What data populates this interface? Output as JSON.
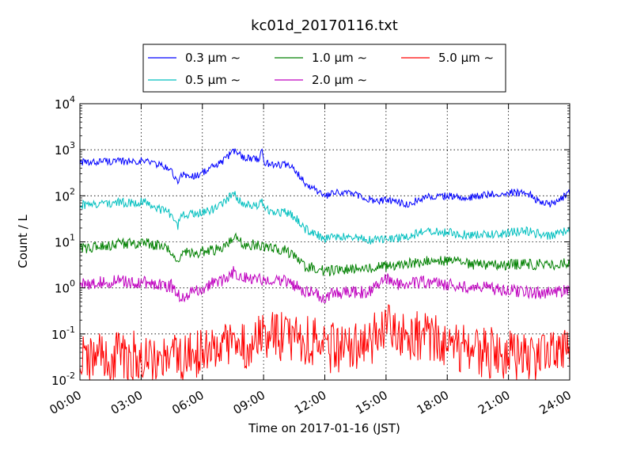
{
  "chart_data": {
    "type": "line",
    "title": "kc01d_20170116.txt",
    "xlabel": "Time on 2017-01-16 (JST)",
    "ylabel": "Count / L",
    "x_ticks": [
      "00:00",
      "03:00",
      "06:00",
      "09:00",
      "12:00",
      "15:00",
      "18:00",
      "21:00",
      "24:00"
    ],
    "x_range_hours": [
      0,
      24
    ],
    "y_scale": "log",
    "ylim": [
      0.01,
      10000
    ],
    "y_ticks": [
      {
        "base": "10",
        "exp": "-2"
      },
      {
        "base": "10",
        "exp": "-1"
      },
      {
        "base": "10",
        "exp": "0"
      },
      {
        "base": "10",
        "exp": "1"
      },
      {
        "base": "10",
        "exp": "2"
      },
      {
        "base": "10",
        "exp": "3"
      },
      {
        "base": "10",
        "exp": "4"
      }
    ],
    "grid": true,
    "legend_placement": "top-center",
    "series": [
      {
        "name": "0.3 μm ∼",
        "color": "#0000ff",
        "noise": 0.04,
        "x": [
          0,
          0.5,
          1,
          2,
          3,
          3.5,
          4,
          4.5,
          4.8,
          5,
          5.5,
          6,
          6.5,
          7,
          7.5,
          7.8,
          8,
          8.5,
          8.8,
          8.9,
          9,
          9.5,
          10,
          10.5,
          11,
          11.5,
          12,
          12.5,
          13,
          14,
          14.5,
          15,
          15.5,
          16,
          17,
          18,
          19,
          20,
          21,
          22,
          22.5,
          23,
          23.5,
          24
        ],
        "y": [
          550,
          500,
          580,
          550,
          580,
          540,
          450,
          350,
          180,
          300,
          260,
          320,
          420,
          550,
          950,
          820,
          700,
          650,
          620,
          1350,
          520,
          480,
          480,
          380,
          200,
          140,
          95,
          115,
          120,
          90,
          75,
          80,
          75,
          65,
          95,
          100,
          90,
          105,
          120,
          110,
          75,
          65,
          80,
          120
        ]
      },
      {
        "name": "0.5 μm ∼",
        "color": "#00bfbf",
        "noise": 0.05,
        "x": [
          0,
          0.5,
          1,
          2,
          3,
          3.5,
          4,
          4.5,
          4.8,
          5,
          5.5,
          6,
          6.5,
          7,
          7.5,
          7.8,
          8,
          8.5,
          8.8,
          8.9,
          9,
          9.5,
          10,
          10.5,
          11,
          11.5,
          12,
          12.5,
          13,
          14,
          15,
          16,
          17,
          18,
          19,
          20,
          21,
          22,
          23,
          24
        ],
        "y": [
          65,
          60,
          70,
          70,
          75,
          65,
          50,
          40,
          22,
          42,
          40,
          45,
          50,
          65,
          120,
          85,
          70,
          65,
          60,
          95,
          55,
          45,
          45,
          35,
          20,
          15,
          12,
          12,
          13,
          11,
          11,
          13,
          17,
          16,
          14,
          14,
          16,
          17,
          13,
          18
        ]
      },
      {
        "name": "1.0 μm ∼",
        "color": "#008000",
        "noise": 0.06,
        "x": [
          0,
          1,
          2,
          3,
          3.5,
          4,
          4.5,
          4.8,
          5,
          5.5,
          6,
          6.5,
          7,
          7.5,
          7.8,
          8,
          8.5,
          9,
          9.5,
          10,
          10.5,
          11,
          12,
          13,
          14,
          15,
          16,
          17,
          18,
          19,
          20,
          21,
          22,
          23,
          24
        ],
        "y": [
          7,
          8,
          9,
          9.5,
          9,
          8,
          6,
          3.5,
          6,
          5.5,
          6,
          6.5,
          7,
          13,
          10,
          9,
          8.5,
          8,
          7,
          7,
          5,
          3,
          2.3,
          2.5,
          2.6,
          3,
          3.3,
          3.8,
          4,
          3.3,
          3,
          3.2,
          3.3,
          3.2,
          3.5
        ]
      },
      {
        "name": "2.0 μm ∼",
        "color": "#bf00bf",
        "noise": 0.07,
        "x": [
          0,
          1,
          2,
          3,
          4,
          4.5,
          5,
          5.5,
          6,
          6.5,
          7,
          7.5,
          8,
          8.5,
          9,
          9.5,
          10,
          10.5,
          11,
          12,
          12.5,
          13,
          14,
          14.5,
          15,
          15.5,
          16,
          17,
          18,
          19,
          20,
          21,
          22,
          23,
          24
        ],
        "y": [
          1.2,
          1.3,
          1.4,
          1.3,
          1.2,
          1.1,
          0.6,
          0.9,
          0.9,
          1.3,
          1.5,
          2.2,
          1.8,
          1.6,
          1.5,
          1.6,
          1.5,
          1.1,
          0.9,
          0.6,
          0.8,
          0.8,
          0.8,
          1.0,
          1.6,
          1.2,
          1.2,
          1.4,
          1.2,
          1.0,
          1.0,
          0.9,
          0.8,
          0.8,
          0.9
        ]
      },
      {
        "name": "5.0 μm ∼",
        "color": "#ff0000",
        "noise": 0.28,
        "x": [
          0,
          2,
          3,
          4,
          5,
          6,
          7,
          8,
          9,
          10,
          11,
          12,
          13,
          14,
          15,
          15.5,
          16,
          17,
          18,
          19,
          20,
          21,
          22,
          23,
          24
        ],
        "y": [
          0.03,
          0.03,
          0.035,
          0.03,
          0.025,
          0.04,
          0.05,
          0.06,
          0.08,
          0.09,
          0.08,
          0.05,
          0.05,
          0.06,
          0.14,
          0.1,
          0.09,
          0.09,
          0.07,
          0.04,
          0.04,
          0.035,
          0.03,
          0.03,
          0.035
        ]
      }
    ]
  }
}
